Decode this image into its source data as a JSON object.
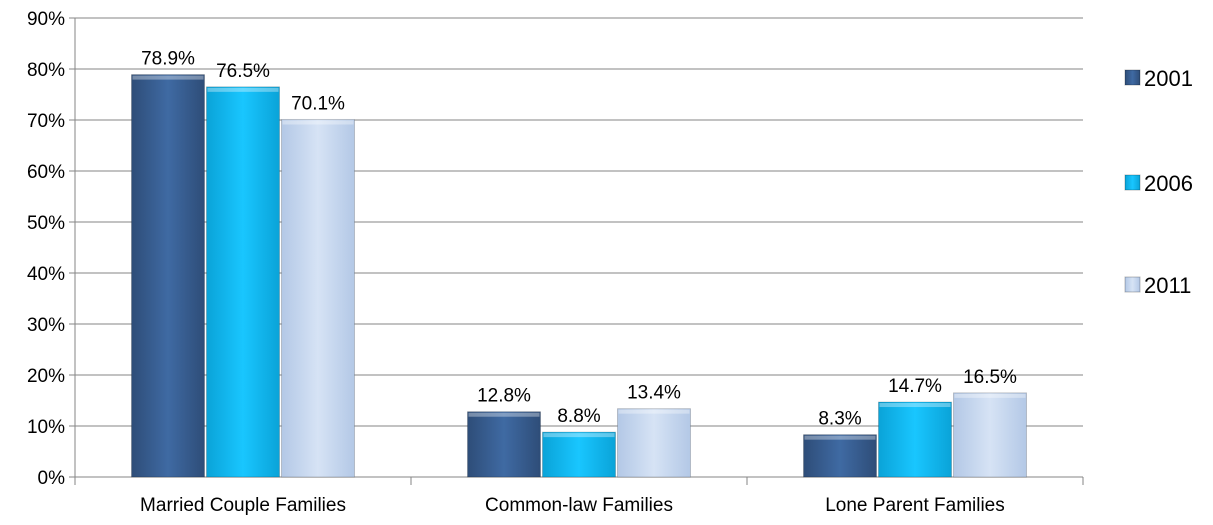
{
  "chart_data": {
    "type": "bar",
    "categories": [
      "Married Couple Families",
      "Common-law Families",
      "Lone Parent Families"
    ],
    "series": [
      {
        "name": "2001",
        "values": [
          78.9,
          12.8,
          8.3
        ],
        "labels": [
          "78.9%",
          "12.8%",
          "8.3%"
        ],
        "color": "#3a5f93"
      },
      {
        "name": "2006",
        "values": [
          76.5,
          8.8,
          14.7
        ],
        "labels": [
          "76.5%",
          "8.8%",
          "14.7%"
        ],
        "color": "#0fb8f0"
      },
      {
        "name": "2011",
        "values": [
          70.1,
          13.4,
          16.5
        ],
        "labels": [
          "70.1%",
          "13.4%",
          "16.5%"
        ],
        "color": "#c6d7ee"
      }
    ],
    "y_ticks": [
      "0%",
      "10%",
      "20%",
      "30%",
      "40%",
      "50%",
      "60%",
      "70%",
      "80%",
      "90%"
    ],
    "ylim": [
      0,
      90
    ],
    "grid": true,
    "legend": "right"
  }
}
